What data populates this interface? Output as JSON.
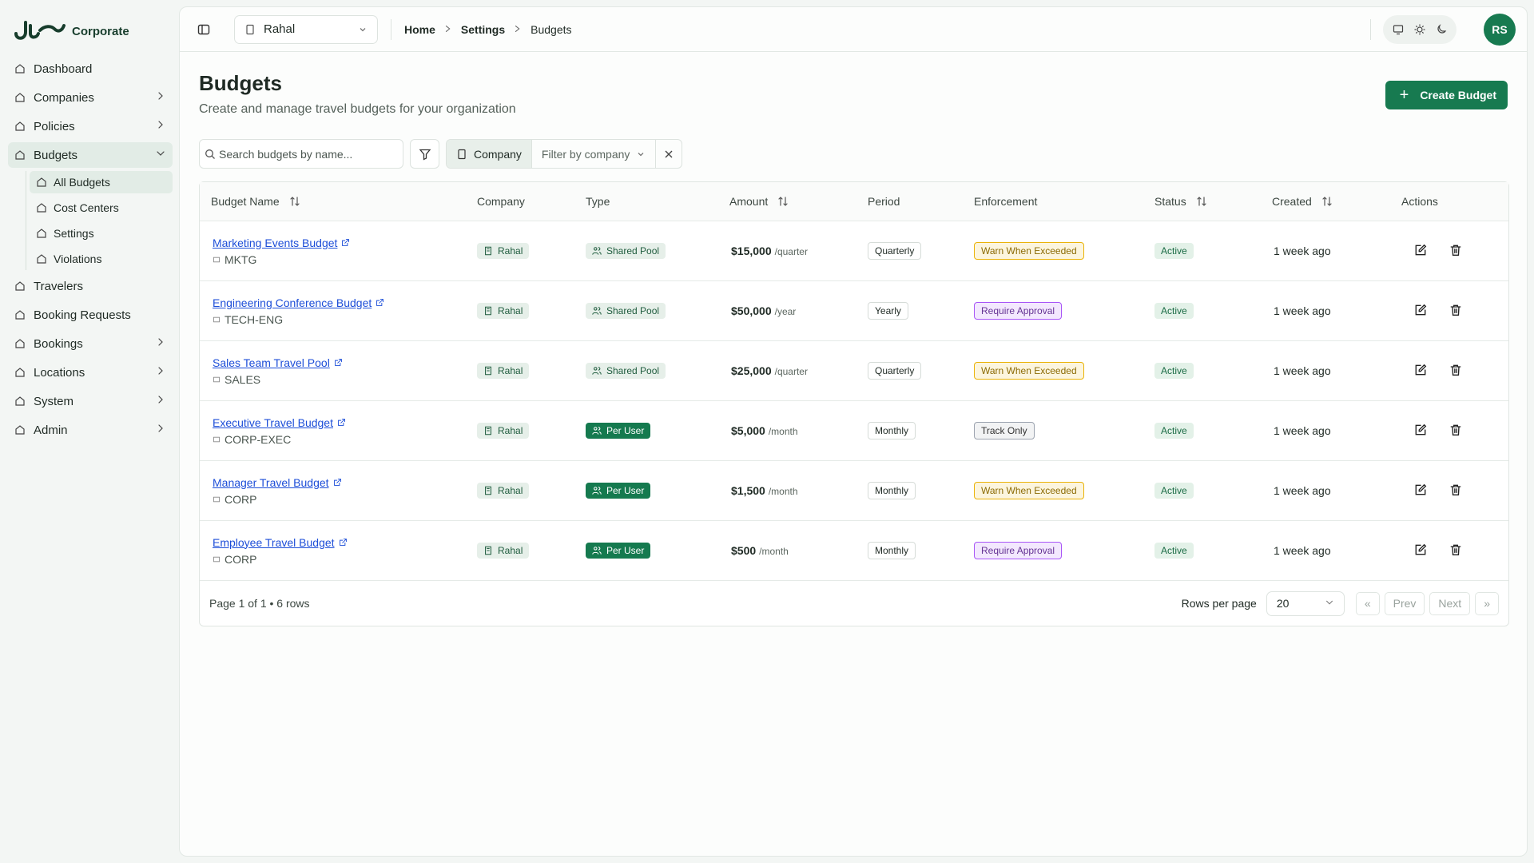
{
  "brand": "Corporate",
  "nav": [
    {
      "label": "Dashboard"
    },
    {
      "label": "Companies",
      "has_children": true
    },
    {
      "label": "Policies",
      "has_children": true
    },
    {
      "label": "Budgets",
      "has_children": true,
      "expanded": true,
      "children": [
        {
          "label": "All Budgets",
          "active": true
        },
        {
          "label": "Cost Centers"
        },
        {
          "label": "Settings"
        },
        {
          "label": "Violations"
        }
      ]
    },
    {
      "label": "Travelers"
    },
    {
      "label": "Booking Requests"
    },
    {
      "label": "Bookings",
      "has_children": true
    },
    {
      "label": "Locations",
      "has_children": true
    },
    {
      "label": "System",
      "has_children": true
    },
    {
      "label": "Admin",
      "has_children": true
    }
  ],
  "header": {
    "company": "Rahal",
    "breadcrumbs": [
      "Home",
      "Settings",
      "Budgets"
    ],
    "avatar": "RS"
  },
  "page": {
    "title": "Budgets",
    "subtitle": "Create and manage travel budgets for your organization",
    "create_button": "Create Budget"
  },
  "filters": {
    "search_placeholder": "Search budgets by name...",
    "company_label": "Company",
    "company_placeholder": "Filter by company"
  },
  "type_colors": {
    "Shared Pool": "#e6efe9",
    "Per User": "#157a4f"
  },
  "enforcement_colors": {
    "Warn When Exceeded": "#eab308",
    "Require Approval": "#a855f7",
    "Track Only": "#9ca3af"
  },
  "table": {
    "columns": [
      {
        "label": "Budget Name",
        "sortable": true
      },
      {
        "label": "Company"
      },
      {
        "label": "Type"
      },
      {
        "label": "Amount",
        "sortable": true
      },
      {
        "label": "Period"
      },
      {
        "label": "Enforcement"
      },
      {
        "label": "Status",
        "sortable": true
      },
      {
        "label": "Created",
        "sortable": true
      },
      {
        "label": "Actions"
      }
    ],
    "rows": [
      {
        "name": "Marketing Events Budget",
        "code": "MKTG",
        "company": "Rahal",
        "type": "Shared Pool",
        "amount": "$15,000",
        "unit": "/quarter",
        "period": "Quarterly",
        "enforcement": "Warn When Exceeded",
        "status": "Active",
        "created": "1 week ago"
      },
      {
        "name": "Engineering Conference Budget",
        "code": "TECH-ENG",
        "company": "Rahal",
        "type": "Shared Pool",
        "amount": "$50,000",
        "unit": "/year",
        "period": "Yearly",
        "enforcement": "Require Approval",
        "status": "Active",
        "created": "1 week ago"
      },
      {
        "name": "Sales Team Travel Pool",
        "code": "SALES",
        "company": "Rahal",
        "type": "Shared Pool",
        "amount": "$25,000",
        "unit": "/quarter",
        "period": "Quarterly",
        "enforcement": "Warn When Exceeded",
        "status": "Active",
        "created": "1 week ago"
      },
      {
        "name": "Executive Travel Budget",
        "code": "CORP-EXEC",
        "company": "Rahal",
        "type": "Per User",
        "amount": "$5,000",
        "unit": "/month",
        "period": "Monthly",
        "enforcement": "Track Only",
        "status": "Active",
        "created": "1 week ago"
      },
      {
        "name": "Manager Travel Budget",
        "code": "CORP",
        "company": "Rahal",
        "type": "Per User",
        "amount": "$1,500",
        "unit": "/month",
        "period": "Monthly",
        "enforcement": "Warn When Exceeded",
        "status": "Active",
        "created": "1 week ago"
      },
      {
        "name": "Employee Travel Budget",
        "code": "CORP",
        "company": "Rahal",
        "type": "Per User",
        "amount": "$500",
        "unit": "/month",
        "period": "Monthly",
        "enforcement": "Require Approval",
        "status": "Active",
        "created": "1 week ago"
      }
    ]
  },
  "footer": {
    "summary": "Page 1 of 1 • 6 rows",
    "rows_per_page_label": "Rows per page",
    "rows_per_page": "20",
    "first": "«",
    "prev": "Prev",
    "next": "Next",
    "last": "»"
  }
}
